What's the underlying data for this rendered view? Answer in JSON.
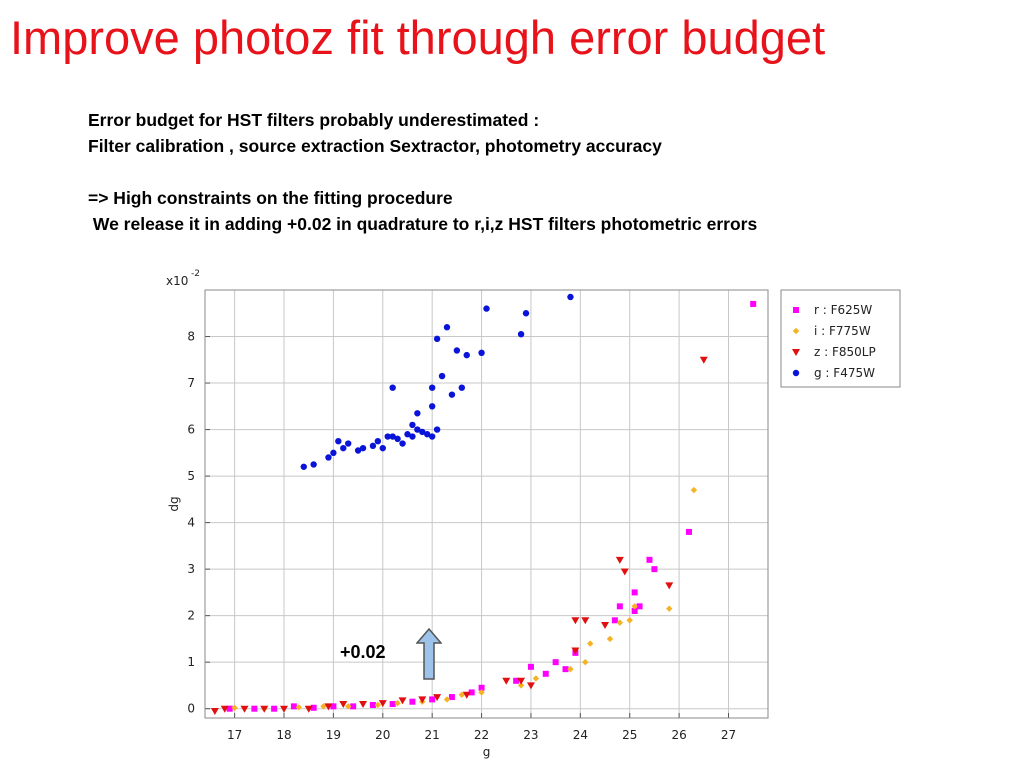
{
  "slide": {
    "title": "Improve photoz fit through error budget",
    "lines": [
      "Error budget for HST filters probably underestimated :",
      "Filter calibration , source extraction Sextractor, photometry accuracy",
      "",
      "=> High constraints on the fitting procedure",
      " We release it in adding +0.02 in quadrature to r,i,z HST filters photometric errors"
    ]
  },
  "annotation": {
    "label": "+0.02",
    "arrow_color": "#9ec3ea"
  },
  "chart_data": {
    "type": "scatter",
    "title": "",
    "xlabel": "g",
    "ylabel": "dg",
    "y_multiplier_label": "x10",
    "y_multiplier_exp": "-2",
    "xlim": [
      16.4,
      27.8
    ],
    "ylim": [
      -0.2,
      9.0
    ],
    "x_ticks": [
      17,
      18,
      19,
      20,
      21,
      22,
      23,
      24,
      25,
      26,
      27
    ],
    "y_ticks": [
      0,
      1,
      2,
      3,
      4,
      5,
      6,
      7,
      8
    ],
    "grid": true,
    "legend_position": "top-right",
    "series": [
      {
        "name": "r : F625W",
        "color": "#ff00ff",
        "marker": "square",
        "points": [
          [
            16.9,
            0.0
          ],
          [
            17.4,
            0.0
          ],
          [
            17.8,
            0.0
          ],
          [
            18.2,
            0.05
          ],
          [
            18.6,
            0.02
          ],
          [
            19.0,
            0.05
          ],
          [
            19.4,
            0.05
          ],
          [
            19.8,
            0.08
          ],
          [
            20.2,
            0.1
          ],
          [
            20.6,
            0.15
          ],
          [
            21.0,
            0.2
          ],
          [
            21.4,
            0.25
          ],
          [
            21.8,
            0.35
          ],
          [
            22.0,
            0.45
          ],
          [
            22.7,
            0.6
          ],
          [
            23.0,
            0.9
          ],
          [
            23.3,
            0.75
          ],
          [
            23.5,
            1.0
          ],
          [
            23.7,
            0.85
          ],
          [
            23.9,
            1.2
          ],
          [
            24.7,
            1.9
          ],
          [
            24.8,
            2.2
          ],
          [
            25.1,
            2.5
          ],
          [
            25.1,
            2.1
          ],
          [
            25.2,
            2.2
          ],
          [
            25.4,
            3.2
          ],
          [
            25.5,
            3.0
          ],
          [
            26.2,
            3.8
          ],
          [
            27.5,
            8.7
          ]
        ]
      },
      {
        "name": "i : F775W",
        "color": "#f5b324",
        "marker": "diamond",
        "points": [
          [
            17.0,
            0.02
          ],
          [
            17.6,
            0.0
          ],
          [
            18.3,
            0.03
          ],
          [
            18.8,
            0.05
          ],
          [
            19.3,
            0.05
          ],
          [
            19.9,
            0.08
          ],
          [
            20.3,
            0.12
          ],
          [
            20.8,
            0.15
          ],
          [
            21.3,
            0.2
          ],
          [
            21.6,
            0.3
          ],
          [
            22.0,
            0.35
          ],
          [
            22.8,
            0.5
          ],
          [
            23.1,
            0.65
          ],
          [
            23.8,
            0.85
          ],
          [
            24.1,
            1.0
          ],
          [
            24.2,
            1.4
          ],
          [
            24.6,
            1.5
          ],
          [
            24.8,
            1.85
          ],
          [
            25.0,
            1.9
          ],
          [
            25.1,
            2.2
          ],
          [
            25.8,
            2.15
          ],
          [
            26.3,
            4.7
          ]
        ]
      },
      {
        "name": "z : F850LP",
        "color": "#e01010",
        "marker": "triangle",
        "points": [
          [
            16.6,
            -0.05
          ],
          [
            16.8,
            0.0
          ],
          [
            17.2,
            0.0
          ],
          [
            17.6,
            0.0
          ],
          [
            18.0,
            0.0
          ],
          [
            18.5,
            0.0
          ],
          [
            18.9,
            0.05
          ],
          [
            19.2,
            0.1
          ],
          [
            19.6,
            0.1
          ],
          [
            20.0,
            0.12
          ],
          [
            20.4,
            0.18
          ],
          [
            20.8,
            0.2
          ],
          [
            21.1,
            0.25
          ],
          [
            21.7,
            0.3
          ],
          [
            22.5,
            0.6
          ],
          [
            22.8,
            0.6
          ],
          [
            23.0,
            0.5
          ],
          [
            23.9,
            1.25
          ],
          [
            23.9,
            1.9
          ],
          [
            24.1,
            1.9
          ],
          [
            24.5,
            1.8
          ],
          [
            24.8,
            3.2
          ],
          [
            24.9,
            2.95
          ],
          [
            25.8,
            2.65
          ],
          [
            26.5,
            7.5
          ]
        ]
      },
      {
        "name": "g : F475W",
        "color": "#0a14d8",
        "marker": "circle",
        "points": [
          [
            18.4,
            5.2
          ],
          [
            18.6,
            5.25
          ],
          [
            18.9,
            5.4
          ],
          [
            19.0,
            5.5
          ],
          [
            19.1,
            5.75
          ],
          [
            19.2,
            5.6
          ],
          [
            19.3,
            5.7
          ],
          [
            19.5,
            5.55
          ],
          [
            19.6,
            5.6
          ],
          [
            19.8,
            5.65
          ],
          [
            19.9,
            5.75
          ],
          [
            20.0,
            5.6
          ],
          [
            20.1,
            5.85
          ],
          [
            20.2,
            5.85
          ],
          [
            20.3,
            5.8
          ],
          [
            20.4,
            5.7
          ],
          [
            20.5,
            5.9
          ],
          [
            20.6,
            5.85
          ],
          [
            20.7,
            6.0
          ],
          [
            20.8,
            5.95
          ],
          [
            20.9,
            5.9
          ],
          [
            21.0,
            5.85
          ],
          [
            21.1,
            6.0
          ],
          [
            20.2,
            6.9
          ],
          [
            20.6,
            6.1
          ],
          [
            20.7,
            6.35
          ],
          [
            21.0,
            6.9
          ],
          [
            21.0,
            6.5
          ],
          [
            21.1,
            7.95
          ],
          [
            21.2,
            7.15
          ],
          [
            21.3,
            8.2
          ],
          [
            21.4,
            6.75
          ],
          [
            21.5,
            7.7
          ],
          [
            21.6,
            6.9
          ],
          [
            21.7,
            7.6
          ],
          [
            22.0,
            7.65
          ],
          [
            22.1,
            8.6
          ],
          [
            22.8,
            8.05
          ],
          [
            22.9,
            8.5
          ],
          [
            23.8,
            8.85
          ]
        ]
      }
    ]
  }
}
